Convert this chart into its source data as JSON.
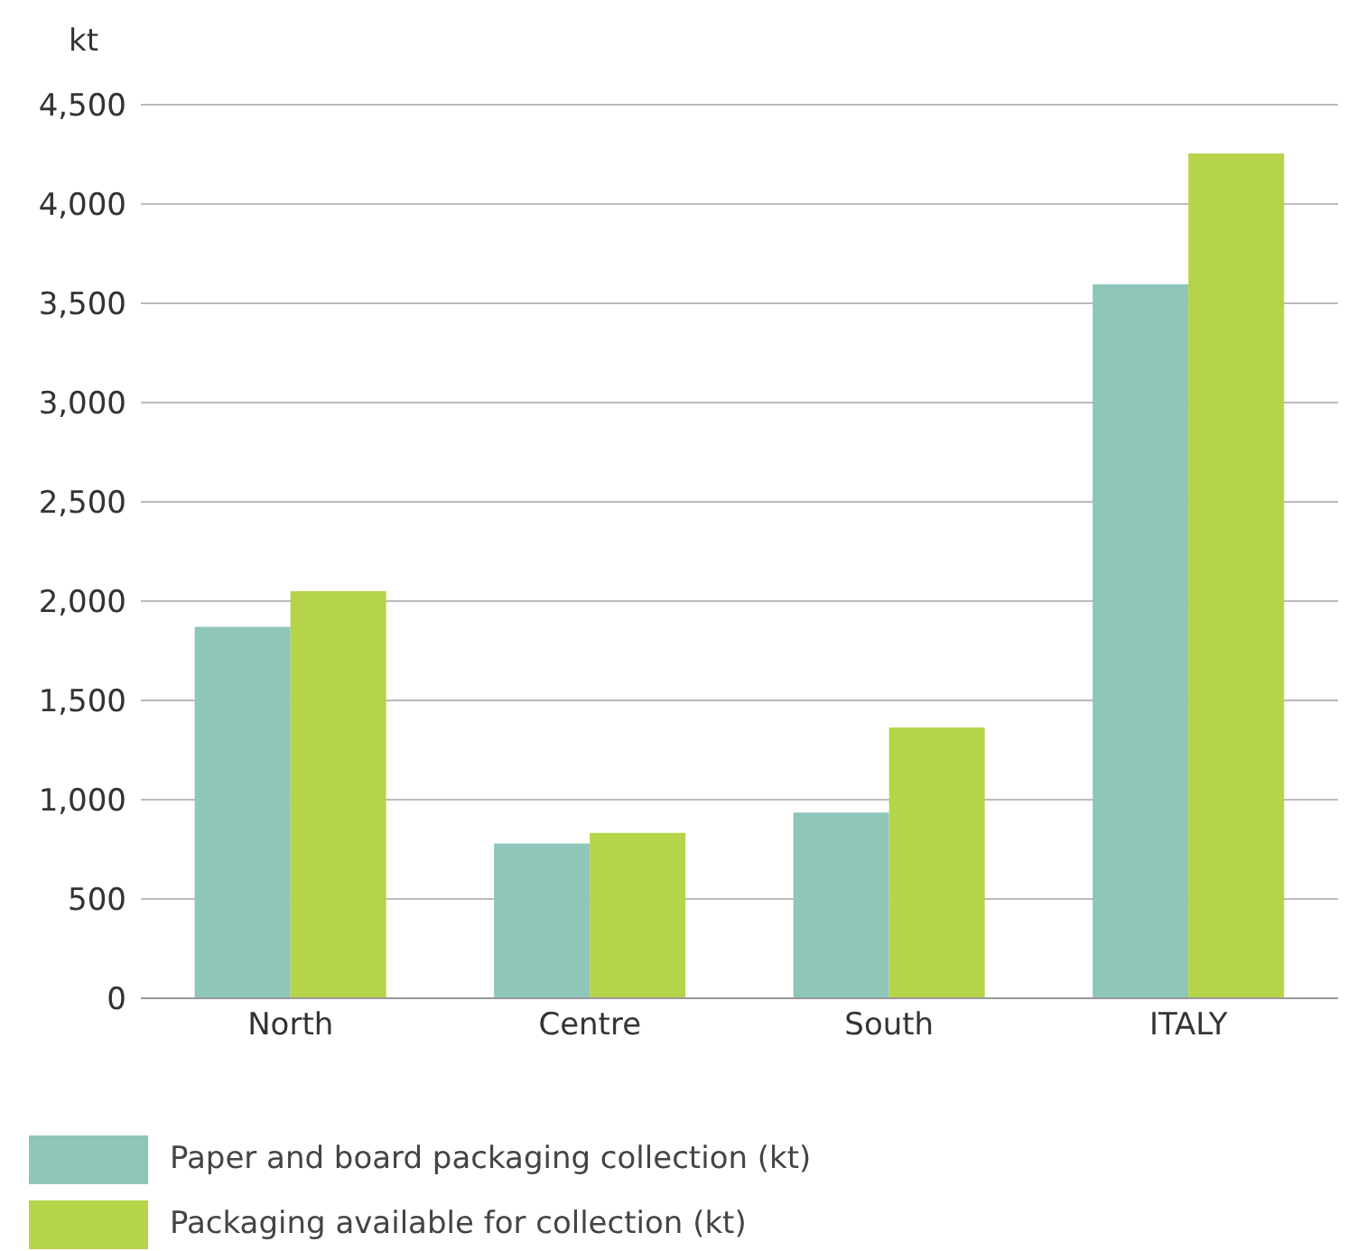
{
  "chart_data": {
    "type": "bar",
    "ylabel": "kt",
    "categories": [
      "North",
      "Centre",
      "South",
      "ITALY"
    ],
    "series": [
      {
        "name": "Paper and board packaging collection (kt)",
        "color": "#8ec6b9",
        "values": [
          1870,
          780,
          935,
          3596
        ]
      },
      {
        "name": "Packaging available for collection (kt)",
        "color": "#b5d44a",
        "values": [
          2050,
          833,
          1364,
          4254
        ]
      }
    ],
    "ylim": [
      0,
      4500
    ],
    "yticks": [
      {
        "value": 0,
        "label": "0"
      },
      {
        "value": 500,
        "label": "500"
      },
      {
        "value": 1000,
        "label": "1,000"
      },
      {
        "value": 1500,
        "label": "1,500"
      },
      {
        "value": 2000,
        "label": "2,000"
      },
      {
        "value": 2500,
        "label": "2,500"
      },
      {
        "value": 3000,
        "label": "3,000"
      },
      {
        "value": 3500,
        "label": "3,500"
      },
      {
        "value": 4000,
        "label": "4,000"
      },
      {
        "value": 4500,
        "label": "4,500"
      }
    ],
    "grid": "y",
    "legend": "bottom left"
  }
}
